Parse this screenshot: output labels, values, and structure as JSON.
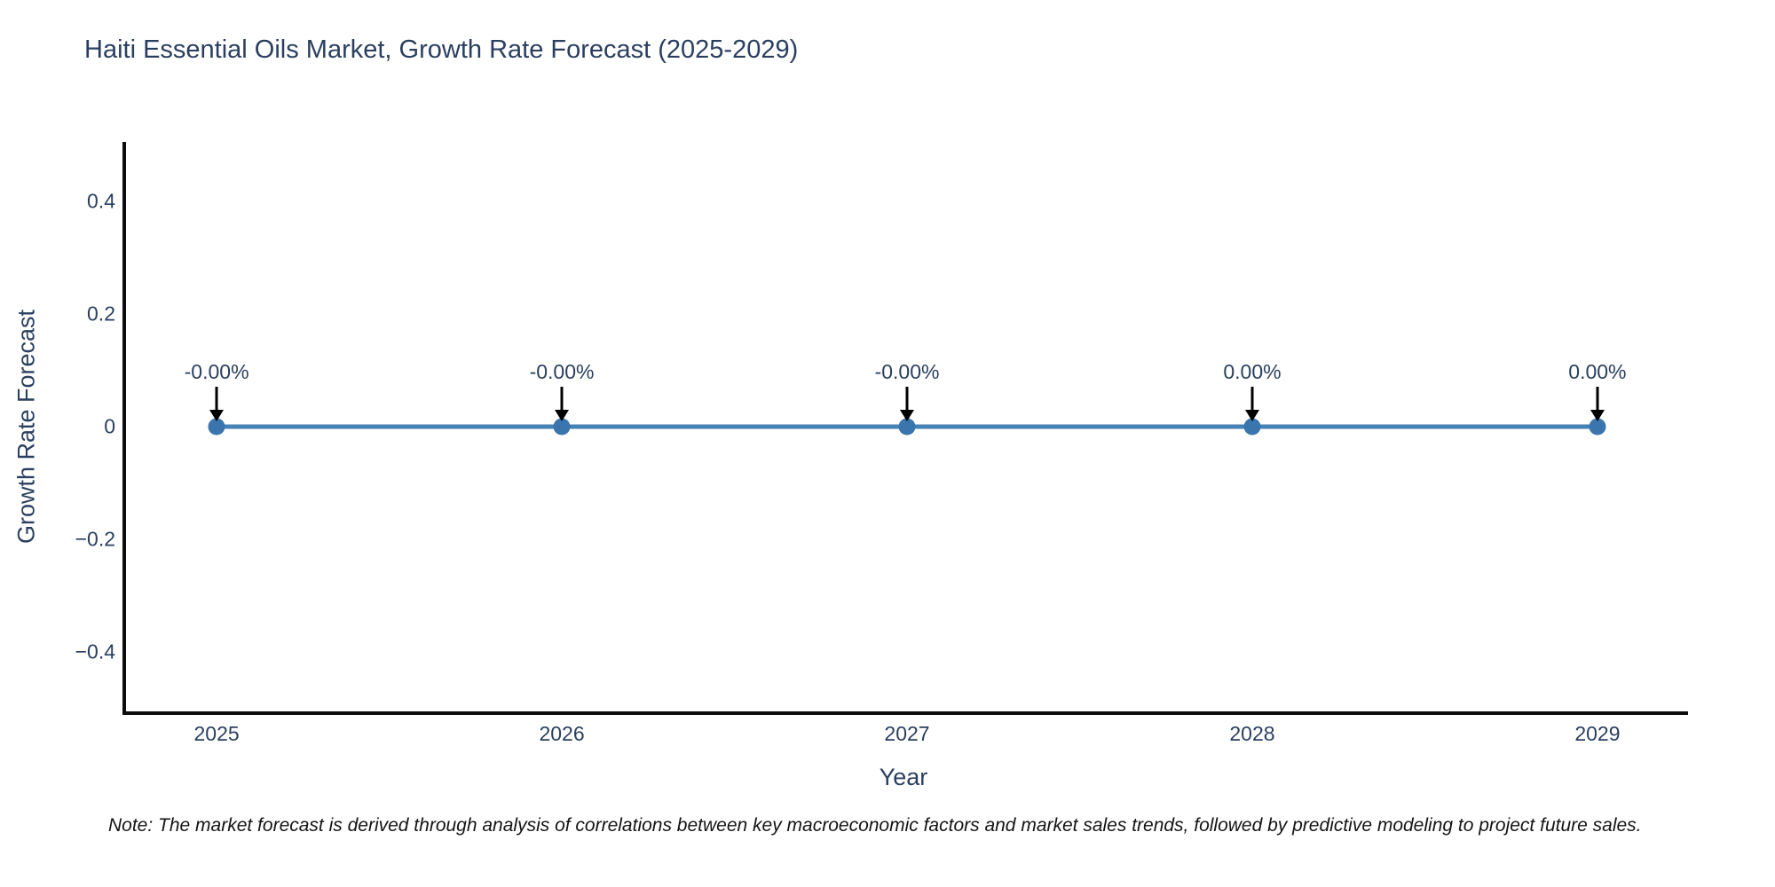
{
  "chart_data": {
    "type": "line",
    "title": "Haiti Essential Oils Market, Growth Rate Forecast (2025-2029)",
    "xlabel": "Year",
    "ylabel": "Growth Rate Forecast",
    "categories": [
      "2025",
      "2026",
      "2027",
      "2028",
      "2029"
    ],
    "series": [
      {
        "name": "Growth Rate Forecast",
        "values": [
          0,
          0,
          0,
          0,
          0
        ]
      }
    ],
    "point_labels": [
      "-0.00%",
      "-0.00%",
      "-0.00%",
      "0.00%",
      "0.00%"
    ],
    "ytick_labels": [
      "0.4",
      "0.2",
      "0",
      "−0.2",
      "−0.4"
    ],
    "ytick_values": [
      0.4,
      0.2,
      0,
      -0.2,
      -0.4
    ],
    "ylim": [
      -0.505,
      0.505
    ],
    "grid": false,
    "legend": false,
    "line_color": "#4682b4",
    "marker_color": "#3a76ad",
    "arrow_color": "#000000",
    "axis_color": "#0c0c0c",
    "note": "Note: The market forecast is derived through analysis of correlations between key macroeconomic factors and market sales trends, followed by predictive modeling to project future sales."
  }
}
